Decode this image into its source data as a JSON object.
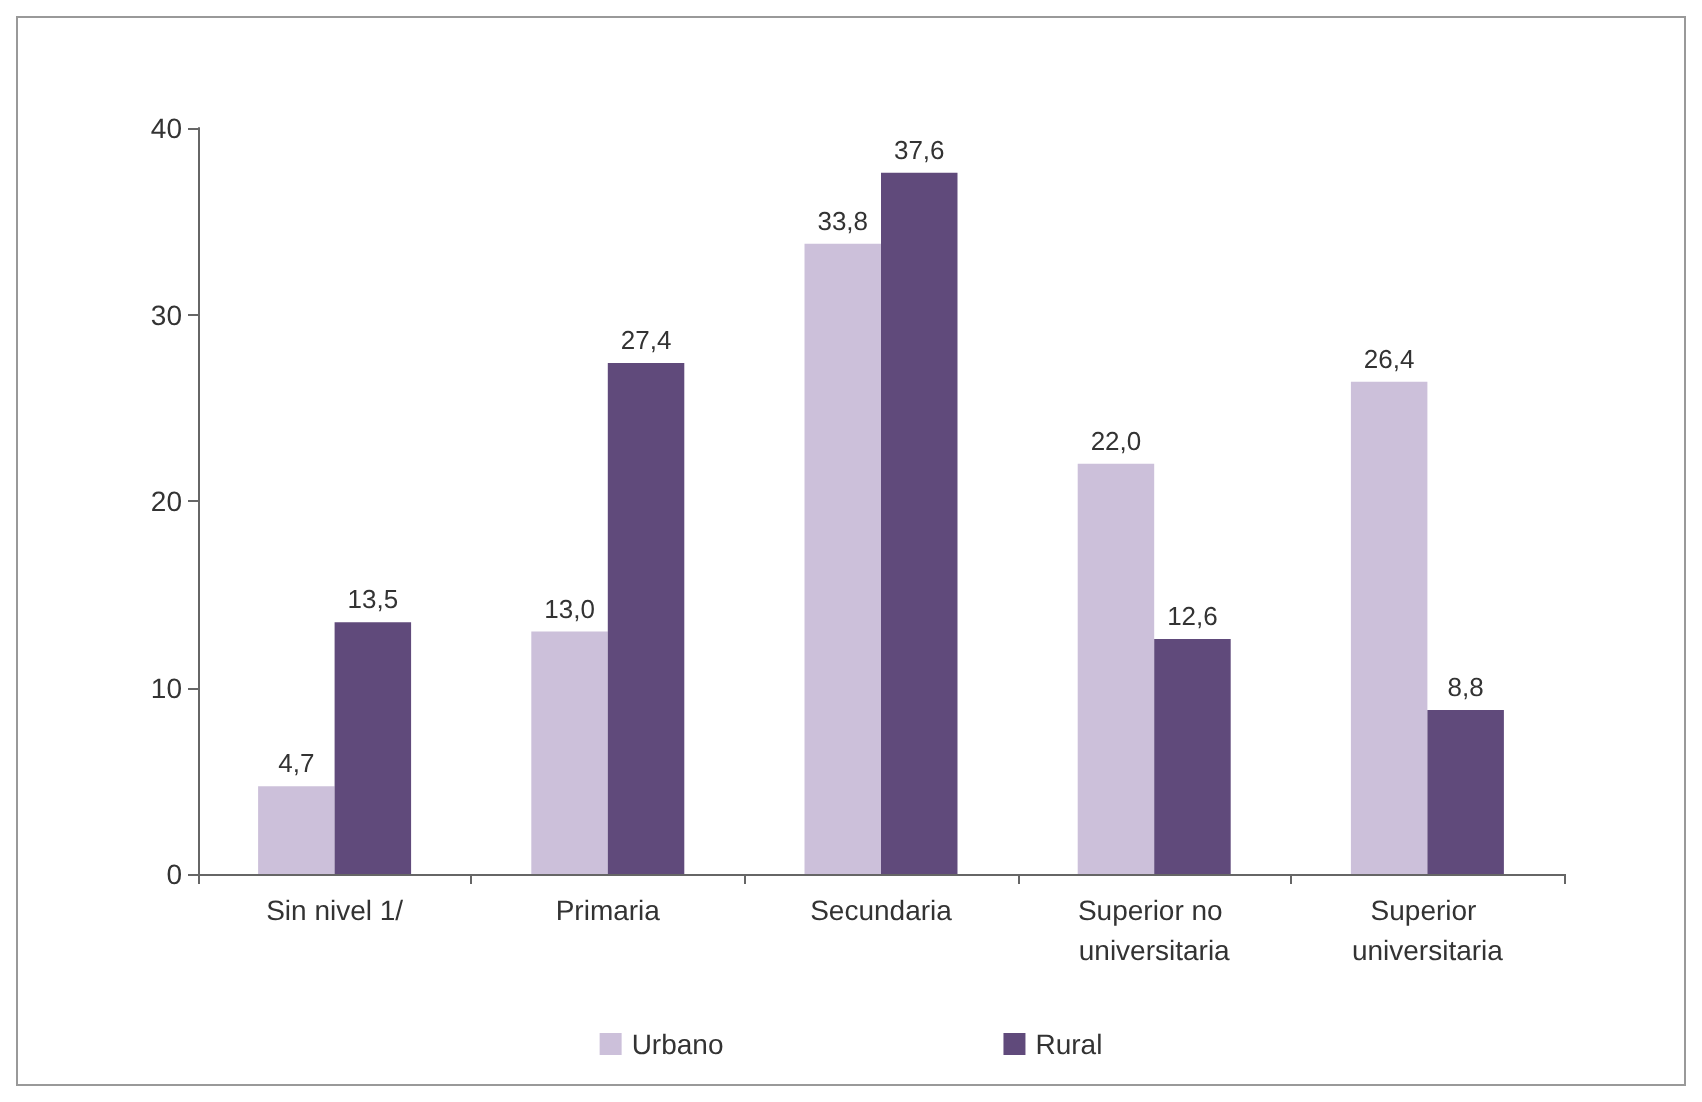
{
  "chart_data": {
    "type": "bar",
    "categories": [
      "Sin nivel 1/",
      "Primaria",
      "Secundaria",
      "Superior no universitaria",
      "Superior universitaria"
    ],
    "series": [
      {
        "name": "Urbano",
        "color": "#ccc0da",
        "values": [
          4.7,
          13.0,
          33.8,
          22.0,
          26.4
        ],
        "value_labels": [
          "4,7",
          "13,0",
          "33,8",
          "22,0",
          "26,4"
        ]
      },
      {
        "name": "Rural",
        "color": "#604a7b",
        "values": [
          13.5,
          27.4,
          37.6,
          12.6,
          8.8
        ],
        "value_labels": [
          "13,5",
          "27,4",
          "37,6",
          "12,6",
          "8,8"
        ]
      }
    ],
    "ylim": [
      0,
      40
    ],
    "yticks": [
      0,
      10,
      20,
      30,
      40
    ],
    "grid": false,
    "legend": "bottom"
  }
}
